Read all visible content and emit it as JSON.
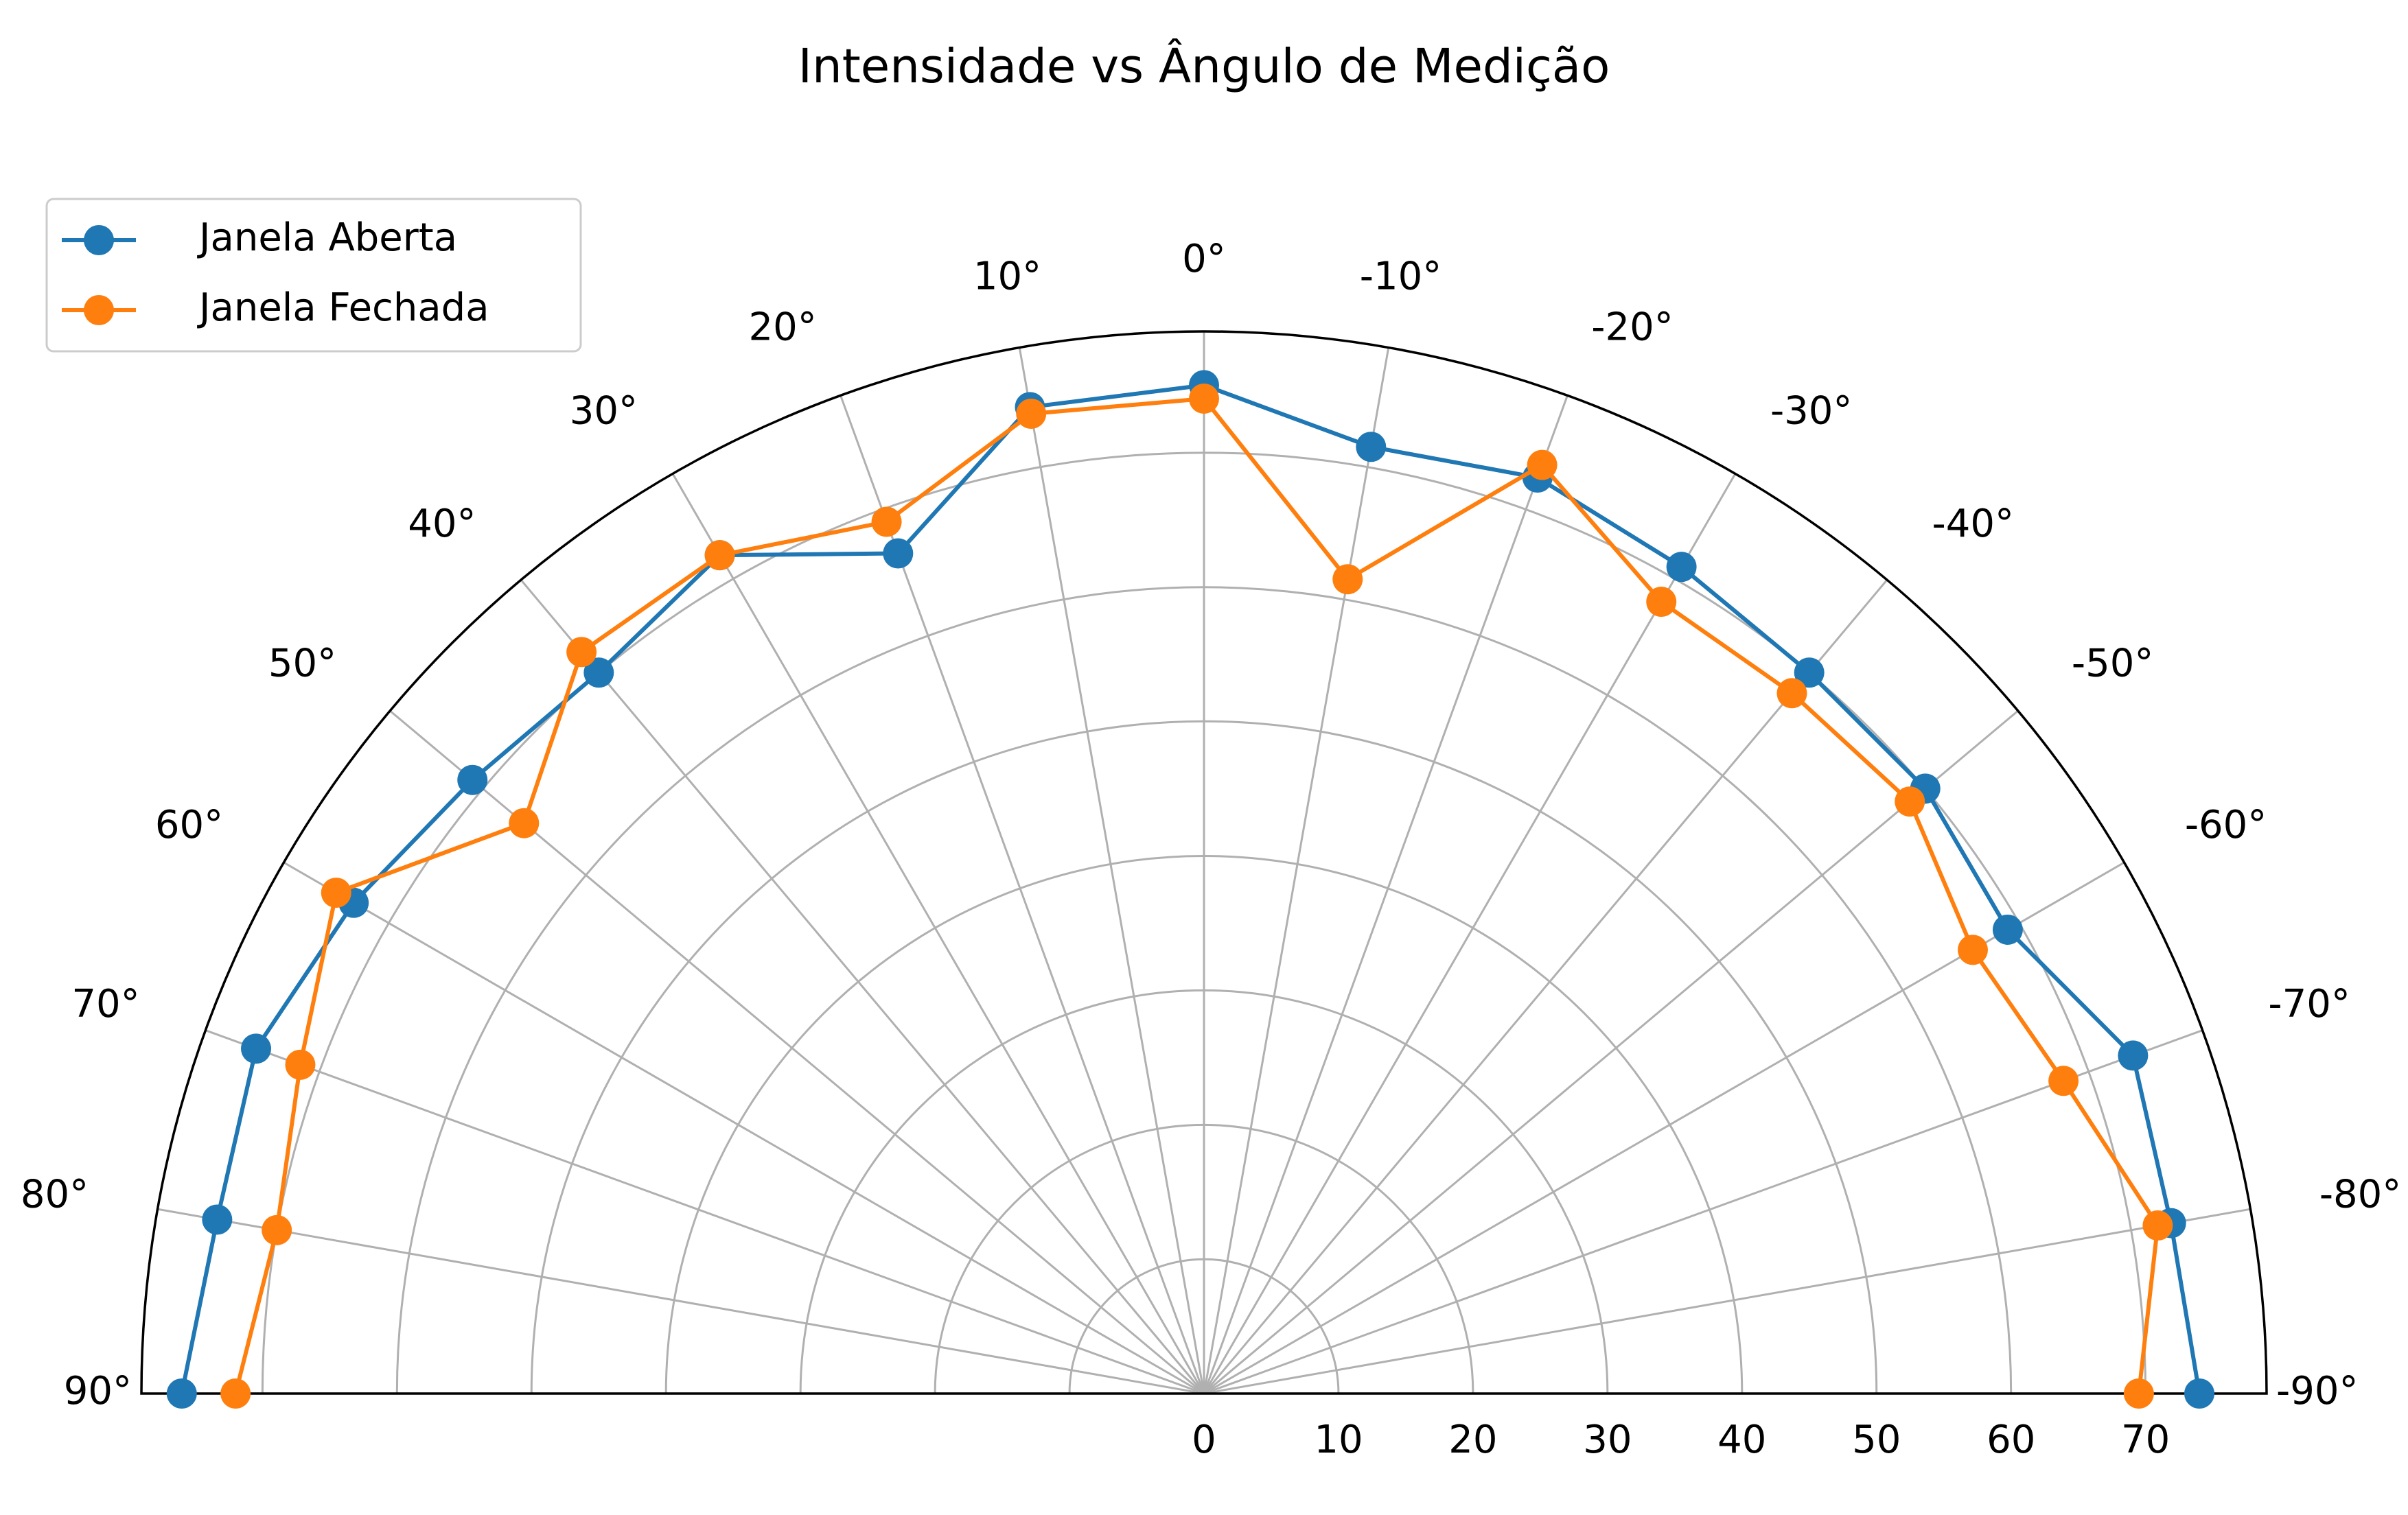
{
  "chart_data": {
    "type": "line",
    "subtype": "polar-half",
    "title": "Intensidade vs Ângulo de Medição",
    "theta_ticks": [
      90,
      80,
      70,
      60,
      50,
      40,
      30,
      20,
      10,
      0,
      -10,
      -20,
      -30,
      -40,
      -50,
      -60,
      -70,
      -80,
      -90
    ],
    "theta_tick_labels": [
      "90°",
      "80°",
      "70°",
      "60°",
      "50°",
      "40°",
      "30°",
      "20°",
      "10°",
      "0°",
      "-10°",
      "-20°",
      "-30°",
      "-40°",
      "-50°",
      "-60°",
      "-70°",
      "-80°",
      "-90°"
    ],
    "theta_range": [
      -90,
      90
    ],
    "r_ticks": [
      0,
      10,
      20,
      30,
      40,
      50,
      60,
      70
    ],
    "r_tick_labels": [
      "0",
      "10",
      "20",
      "30",
      "40",
      "50",
      "60",
      "70"
    ],
    "r_range": [
      0,
      79
    ],
    "grid": true,
    "legend_position": "top-left",
    "x": [
      90,
      80,
      70,
      60,
      50,
      40,
      30,
      20,
      10,
      0,
      -10,
      -20,
      -30,
      -40,
      -50,
      -60,
      -70,
      -80,
      -90
    ],
    "series": [
      {
        "name": "Janela Aberta",
        "color": "#1f77b4",
        "marker": "circle",
        "values": [
          76,
          74.5,
          75,
          73,
          71,
          70,
          72,
          66.5,
          74.5,
          75,
          71.5,
          72.5,
          71,
          70,
          70,
          69,
          73.5,
          73,
          74
        ]
      },
      {
        "name": "Janela Fechada",
        "color": "#ff7f0e",
        "marker": "circle",
        "values": [
          72,
          70,
          71.5,
          74.5,
          66,
          72,
          72,
          69,
          74,
          74,
          61.5,
          73.5,
          68,
          68,
          68.5,
          66,
          68,
          72,
          69.5
        ]
      }
    ]
  }
}
